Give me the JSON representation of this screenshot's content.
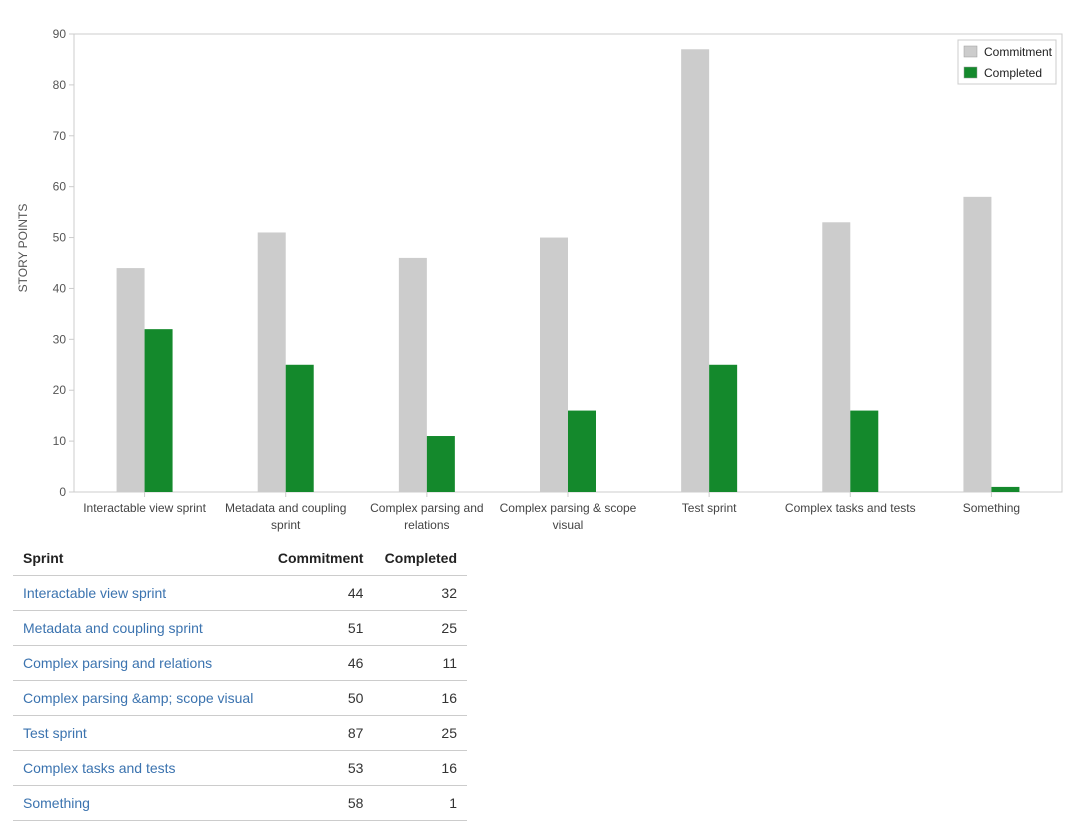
{
  "chart_data": {
    "type": "bar",
    "ylabel": "STORY POINTS",
    "ylim": [
      0,
      90
    ],
    "yticks": [
      0,
      10,
      20,
      30,
      40,
      50,
      60,
      70,
      80,
      90
    ],
    "grid": false,
    "legend_position": "top-right",
    "categories": [
      [
        "Interactable view sprint"
      ],
      [
        "Metadata and coupling",
        "sprint"
      ],
      [
        "Complex parsing and",
        "relations"
      ],
      [
        "Complex parsing & scope",
        "visual"
      ],
      [
        "Test sprint"
      ],
      [
        "Complex tasks and tests"
      ],
      [
        "Something"
      ]
    ],
    "series": [
      {
        "name": "Commitment",
        "color": "#cccccc",
        "values": [
          44,
          51,
          46,
          50,
          87,
          53,
          58
        ]
      },
      {
        "name": "Completed",
        "color": "#14892c",
        "values": [
          32,
          25,
          11,
          16,
          25,
          16,
          1
        ]
      }
    ]
  },
  "table": {
    "headers": {
      "sprint": "Sprint",
      "commitment": "Commitment",
      "completed": "Completed"
    },
    "rows": [
      {
        "sprint": "Interactable view sprint",
        "commitment": "44",
        "completed": "32"
      },
      {
        "sprint": "Metadata and coupling sprint",
        "commitment": "51",
        "completed": "25"
      },
      {
        "sprint": "Complex parsing and relations",
        "commitment": "46",
        "completed": "11"
      },
      {
        "sprint": "Complex parsing &amp; scope visual",
        "commitment": "50",
        "completed": "16"
      },
      {
        "sprint": "Test sprint",
        "commitment": "87",
        "completed": "25"
      },
      {
        "sprint": "Complex tasks and tests",
        "commitment": "53",
        "completed": "16"
      },
      {
        "sprint": "Something",
        "commitment": "58",
        "completed": "1"
      }
    ]
  }
}
